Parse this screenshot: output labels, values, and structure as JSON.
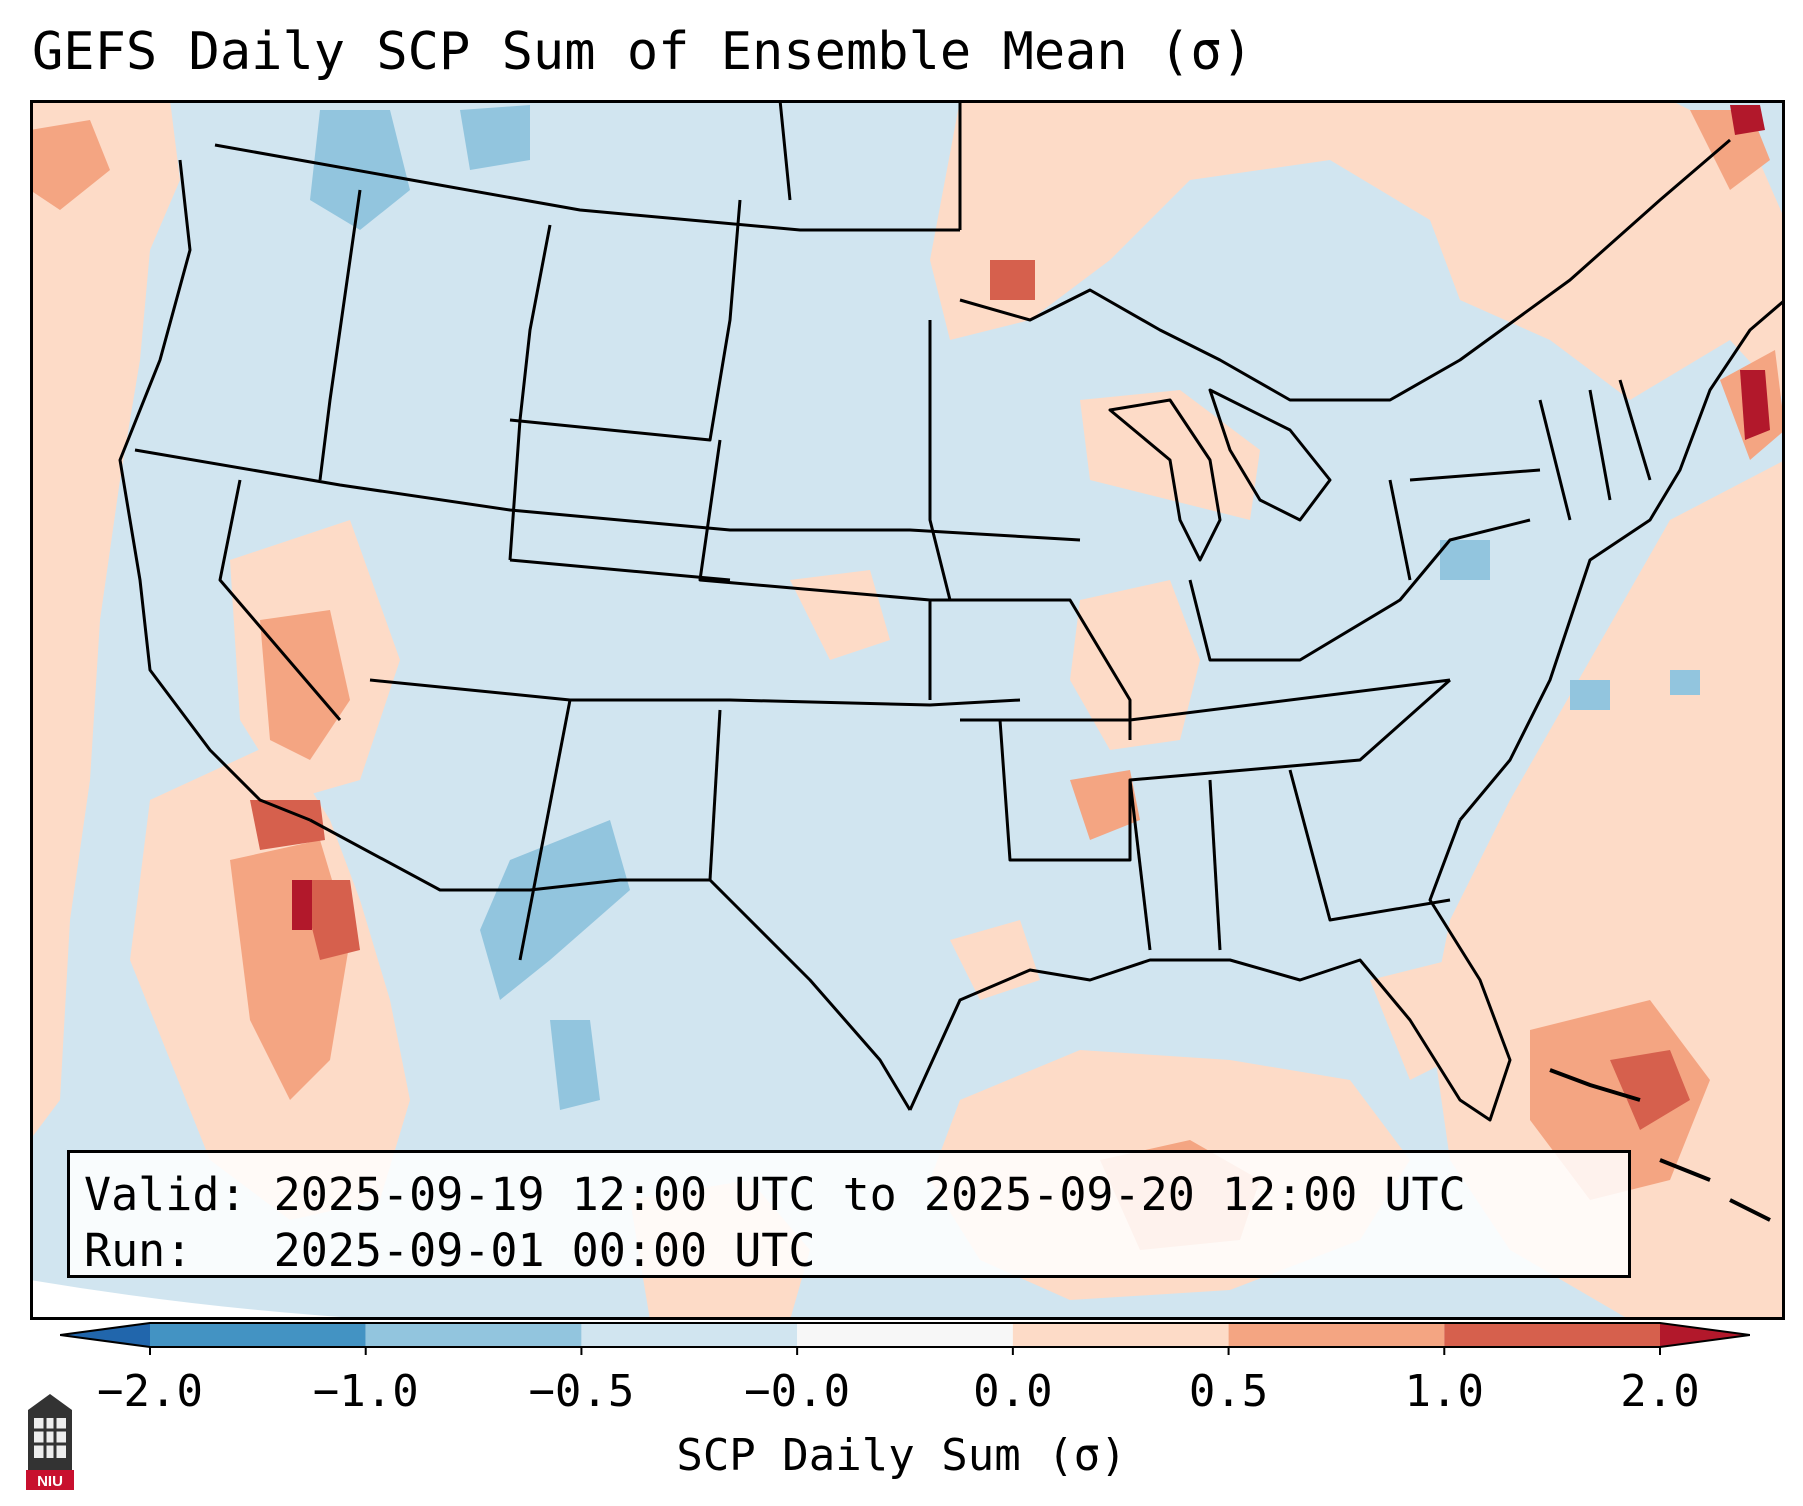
{
  "title": "GEFS Daily SCP Sum of Ensemble Mean (σ)",
  "info": {
    "valid_line": "Valid: 2025-09-19 12:00 UTC to 2025-09-20 12:00 UTC",
    "run_line": "Run:   2025-09-01 00:00 UTC"
  },
  "colorbar": {
    "label": "SCP Daily Sum (σ)",
    "tick_labels": [
      "−2.0",
      "−1.0",
      "−0.5",
      "−0.0",
      "0.0",
      "0.5",
      "1.0",
      "2.0"
    ],
    "bins": [
      {
        "range": "< -2.0",
        "color": "#2166ac"
      },
      {
        "range": "-2.0 to -1.0",
        "color": "#4393c3"
      },
      {
        "range": "-1.0 to -0.5",
        "color": "#92c5de"
      },
      {
        "range": "-0.5 to -0.0",
        "color": "#d1e5f0"
      },
      {
        "range": "-0.0 to 0.0",
        "color": "#f7f7f7"
      },
      {
        "range": "0.0 to 0.5",
        "color": "#fddbc7"
      },
      {
        "range": "0.5 to 1.0",
        "color": "#f4a582"
      },
      {
        "range": "1.0 to 2.0",
        "color": "#d6604d"
      },
      {
        "range": "> 2.0",
        "color": "#b2182b"
      }
    ]
  },
  "map_colors": {
    "background_neg": "#d1e5f0",
    "moderate_neg": "#92c5de",
    "light_pos": "#fddbc7",
    "moderate_pos": "#f4a582",
    "strong_pos": "#d6604d",
    "extreme_pos": "#b2182b",
    "border": "#000000"
  },
  "logo": {
    "text": "NIU",
    "color": "#c8102e"
  }
}
